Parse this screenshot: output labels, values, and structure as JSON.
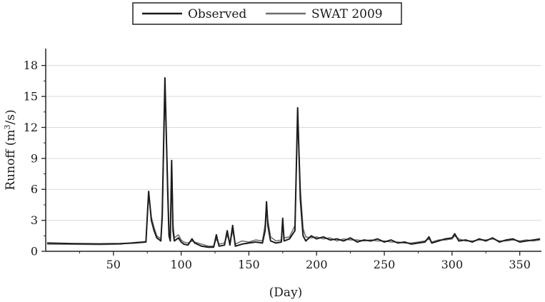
{
  "chart_data": {
    "type": "line",
    "title": "",
    "xlabel": "(Day)",
    "ylabel_main": "Runoff (m",
    "ylabel_sup": "3",
    "ylabel_tail": "/s)",
    "xlim": [
      0,
      366
    ],
    "ylim": [
      0,
      19.5
    ],
    "xticks": [
      50,
      100,
      150,
      200,
      250,
      300,
      350
    ],
    "yticks": [
      0,
      3,
      6,
      9,
      12,
      15,
      18
    ],
    "grid": "horizontal",
    "legend_position": "top-center",
    "series": [
      {
        "name": "Observed",
        "color": "#1c1c1c",
        "points": [
          [
            1,
            0.8
          ],
          [
            20,
            0.75
          ],
          [
            40,
            0.72
          ],
          [
            55,
            0.75
          ],
          [
            65,
            0.8
          ],
          [
            74,
            0.9
          ],
          [
            76,
            5.8
          ],
          [
            78,
            3.0
          ],
          [
            80,
            2.0
          ],
          [
            82,
            1.3
          ],
          [
            85,
            1.0
          ],
          [
            86,
            3.5
          ],
          [
            88,
            16.8
          ],
          [
            90,
            6.0
          ],
          [
            91,
            1.5
          ],
          [
            92,
            1.0
          ],
          [
            93,
            8.8
          ],
          [
            94,
            2.0
          ],
          [
            95,
            1.0
          ],
          [
            98,
            1.3
          ],
          [
            100,
            0.9
          ],
          [
            102,
            0.7
          ],
          [
            105,
            0.6
          ],
          [
            108,
            1.2
          ],
          [
            110,
            0.8
          ],
          [
            115,
            0.5
          ],
          [
            120,
            0.4
          ],
          [
            124,
            0.4
          ],
          [
            126,
            1.6
          ],
          [
            128,
            0.5
          ],
          [
            132,
            0.6
          ],
          [
            134,
            2.0
          ],
          [
            136,
            0.6
          ],
          [
            138,
            2.5
          ],
          [
            140,
            0.5
          ],
          [
            145,
            0.7
          ],
          [
            150,
            0.8
          ],
          [
            155,
            0.9
          ],
          [
            160,
            0.8
          ],
          [
            162,
            2.0
          ],
          [
            163,
            4.8
          ],
          [
            164,
            2.5
          ],
          [
            166,
            1.0
          ],
          [
            170,
            0.8
          ],
          [
            174,
            0.9
          ],
          [
            175,
            3.2
          ],
          [
            176,
            1.0
          ],
          [
            180,
            1.2
          ],
          [
            184,
            2.0
          ],
          [
            186,
            13.9
          ],
          [
            188,
            5.0
          ],
          [
            190,
            1.5
          ],
          [
            192,
            1.0
          ],
          [
            196,
            1.5
          ],
          [
            200,
            1.2
          ],
          [
            205,
            1.4
          ],
          [
            210,
            1.1
          ],
          [
            215,
            1.2
          ],
          [
            220,
            1.0
          ],
          [
            225,
            1.3
          ],
          [
            230,
            0.9
          ],
          [
            235,
            1.1
          ],
          [
            240,
            1.0
          ],
          [
            245,
            1.2
          ],
          [
            250,
            0.9
          ],
          [
            255,
            1.1
          ],
          [
            260,
            0.8
          ],
          [
            265,
            0.9
          ],
          [
            270,
            0.7
          ],
          [
            275,
            0.8
          ],
          [
            280,
            0.9
          ],
          [
            283,
            1.4
          ],
          [
            285,
            0.8
          ],
          [
            290,
            1.0
          ],
          [
            295,
            1.2
          ],
          [
            300,
            1.3
          ],
          [
            302,
            1.7
          ],
          [
            305,
            1.0
          ],
          [
            310,
            1.1
          ],
          [
            315,
            0.9
          ],
          [
            320,
            1.2
          ],
          [
            325,
            1.0
          ],
          [
            330,
            1.3
          ],
          [
            335,
            0.9
          ],
          [
            340,
            1.1
          ],
          [
            345,
            1.2
          ],
          [
            350,
            0.9
          ],
          [
            355,
            1.0
          ],
          [
            360,
            1.1
          ],
          [
            365,
            1.2
          ]
        ]
      },
      {
        "name": "SWAT 2009",
        "color": "#6e6e6e",
        "points": [
          [
            1,
            0.7
          ],
          [
            20,
            0.68
          ],
          [
            40,
            0.65
          ],
          [
            55,
            0.7
          ],
          [
            65,
            0.85
          ],
          [
            74,
            0.95
          ],
          [
            76,
            5.6
          ],
          [
            78,
            3.3
          ],
          [
            80,
            2.3
          ],
          [
            82,
            1.5
          ],
          [
            85,
            1.2
          ],
          [
            86,
            3.0
          ],
          [
            88,
            16.0
          ],
          [
            90,
            6.8
          ],
          [
            91,
            2.0
          ],
          [
            92,
            1.2
          ],
          [
            93,
            8.5
          ],
          [
            94,
            2.6
          ],
          [
            95,
            1.3
          ],
          [
            98,
            1.6
          ],
          [
            100,
            1.1
          ],
          [
            102,
            0.9
          ],
          [
            105,
            0.8
          ],
          [
            108,
            1.0
          ],
          [
            110,
            0.9
          ],
          [
            115,
            0.7
          ],
          [
            120,
            0.5
          ],
          [
            124,
            0.5
          ],
          [
            126,
            1.2
          ],
          [
            128,
            0.7
          ],
          [
            132,
            0.8
          ],
          [
            134,
            1.6
          ],
          [
            136,
            0.8
          ],
          [
            138,
            2.0
          ],
          [
            140,
            0.7
          ],
          [
            145,
            1.0
          ],
          [
            150,
            0.9
          ],
          [
            155,
            1.1
          ],
          [
            160,
            1.0
          ],
          [
            162,
            2.6
          ],
          [
            163,
            4.5
          ],
          [
            164,
            3.0
          ],
          [
            166,
            1.4
          ],
          [
            170,
            1.0
          ],
          [
            174,
            1.1
          ],
          [
            175,
            2.8
          ],
          [
            176,
            1.3
          ],
          [
            180,
            1.4
          ],
          [
            184,
            2.5
          ],
          [
            186,
            13.2
          ],
          [
            188,
            6.0
          ],
          [
            190,
            2.2
          ],
          [
            192,
            1.4
          ],
          [
            196,
            1.3
          ],
          [
            200,
            1.4
          ],
          [
            205,
            1.2
          ],
          [
            210,
            1.3
          ],
          [
            215,
            1.0
          ],
          [
            220,
            1.2
          ],
          [
            225,
            1.1
          ],
          [
            230,
            1.1
          ],
          [
            235,
            1.0
          ],
          [
            240,
            1.1
          ],
          [
            245,
            1.0
          ],
          [
            250,
            1.0
          ],
          [
            255,
            0.9
          ],
          [
            260,
            0.9
          ],
          [
            265,
            0.8
          ],
          [
            270,
            0.8
          ],
          [
            275,
            0.9
          ],
          [
            280,
            1.0
          ],
          [
            283,
            1.2
          ],
          [
            285,
            0.9
          ],
          [
            290,
            1.1
          ],
          [
            295,
            1.1
          ],
          [
            300,
            1.2
          ],
          [
            302,
            1.5
          ],
          [
            305,
            1.2
          ],
          [
            310,
            1.0
          ],
          [
            315,
            1.0
          ],
          [
            320,
            1.1
          ],
          [
            325,
            1.1
          ],
          [
            330,
            1.2
          ],
          [
            335,
            1.0
          ],
          [
            340,
            1.0
          ],
          [
            345,
            1.1
          ],
          [
            350,
            1.0
          ],
          [
            355,
            1.1
          ],
          [
            360,
            1.0
          ],
          [
            365,
            1.1
          ]
        ]
      }
    ]
  }
}
